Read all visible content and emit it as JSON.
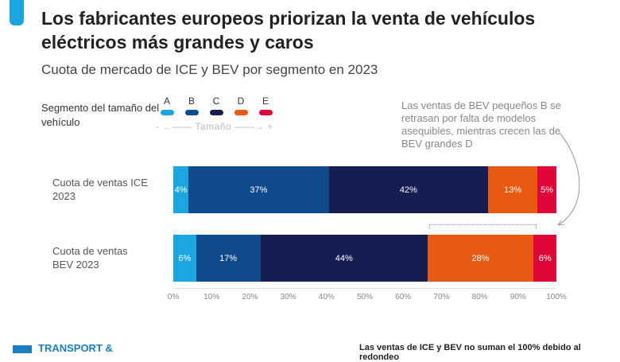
{
  "header": {
    "title": "Los fabricantes europeos priorizan la venta de vehículos eléctricos más grandes y caros",
    "subtitle": "Cuota de mercado de ICE y BEV por segmento en 2023"
  },
  "legend": {
    "title": "Segmento del tamaño del vehículo",
    "size_label": "- ←—— Tamaño ——→ +",
    "items": [
      {
        "label": "A",
        "color": "#1aa7e0"
      },
      {
        "label": "B",
        "color": "#0f4a8a"
      },
      {
        "label": "C",
        "color": "#161d52"
      },
      {
        "label": "D",
        "color": "#e85a12"
      },
      {
        "label": "E",
        "color": "#e0063a"
      }
    ]
  },
  "annotation": "Las ventas de BEV pequeños B se retrasan por falta de modelos asequibles, mientras crecen las de BEV grandes D",
  "chart_data": {
    "type": "bar",
    "orientation": "horizontal",
    "stacked": true,
    "categories": [
      "Cuota de ventas ICE 2023",
      "Cuota de ventas BEV 2023"
    ],
    "series": [
      {
        "name": "A",
        "values": [
          4,
          6
        ]
      },
      {
        "name": "B",
        "values": [
          37,
          17
        ]
      },
      {
        "name": "C",
        "values": [
          42,
          44
        ]
      },
      {
        "name": "D",
        "values": [
          13,
          28
        ]
      },
      {
        "name": "E",
        "values": [
          5,
          6
        ]
      }
    ],
    "data_labels": [
      [
        "4%",
        "37%",
        "42%",
        "13%",
        "5%"
      ],
      [
        "6%",
        "17%",
        "44%",
        "28%",
        "6%"
      ]
    ],
    "xlim": [
      0,
      100
    ],
    "xticks": [
      "0%",
      "10%",
      "20%",
      "30%",
      "40%",
      "50%",
      "60%",
      "70%",
      "80%",
      "90%",
      "100%"
    ]
  },
  "footer": {
    "brand": "TRANSPORT &",
    "note": "Las ventas de ICE y BEV no suman el 100% debido al redondeo"
  }
}
